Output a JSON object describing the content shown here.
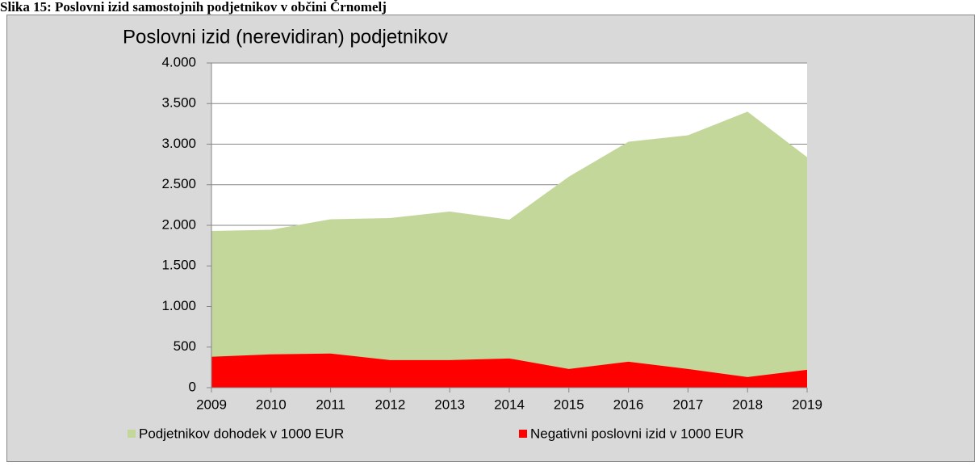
{
  "chart_data": {
    "type": "area",
    "caption": "Slika 15: Poslovni izid samostojnih podjetnikov v občini Črnomelj",
    "title": "Poslovni  izid (nerevidiran)  podjetnikov",
    "categories": [
      "2009",
      "2010",
      "2011",
      "2012",
      "2013",
      "2014",
      "2015",
      "2016",
      "2017",
      "2018",
      "2019"
    ],
    "series": [
      {
        "name": "Podjetnikov dohodek v 1000 EUR",
        "color": "#c4d79b",
        "values": [
          1930,
          1945,
          2075,
          2090,
          2170,
          2070,
          2600,
          3030,
          3110,
          3400,
          2840
        ]
      },
      {
        "name": "Negativni poslovni izid v 1000 EUR",
        "color": "#ff0000",
        "values": [
          380,
          410,
          420,
          340,
          340,
          360,
          230,
          320,
          230,
          130,
          220
        ]
      }
    ],
    "ylim": [
      0,
      4000
    ],
    "yticks": [
      0,
      500,
      {
        "value": 1000,
        "label": "1.000"
      },
      {
        "value": 1500,
        "label": "1.500"
      },
      {
        "value": 2000,
        "label": "2.000"
      },
      {
        "value": 2500,
        "label": "2.500"
      },
      {
        "value": 3000,
        "label": "3.000"
      },
      {
        "value": 3500,
        "label": "3.500"
      },
      {
        "value": 4000,
        "label": "4.000"
      }
    ],
    "grid": true,
    "legend": "bottom"
  }
}
